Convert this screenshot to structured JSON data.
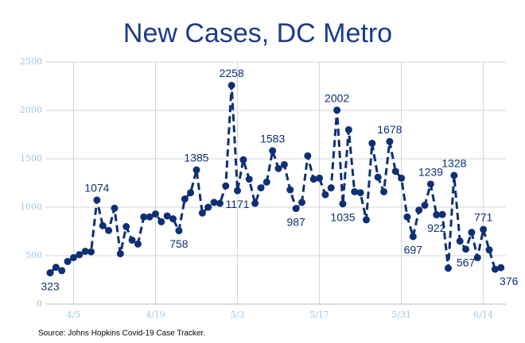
{
  "chart_data": {
    "type": "line",
    "title": "New Cases, DC Metro",
    "source": "Source: Johns Hopkins Covid-19 Case Tracker.",
    "categories": [
      "4/1",
      "4/2",
      "4/3",
      "4/4",
      "4/5",
      "4/6",
      "4/7",
      "4/8",
      "4/9",
      "4/10",
      "4/11",
      "4/12",
      "4/13",
      "4/14",
      "4/15",
      "4/16",
      "4/17",
      "4/18",
      "4/19",
      "4/20",
      "4/21",
      "4/22",
      "4/23",
      "4/24",
      "4/25",
      "4/26",
      "4/27",
      "4/28",
      "4/29",
      "4/30",
      "5/1",
      "5/2",
      "5/3",
      "5/4",
      "5/5",
      "5/6",
      "5/7",
      "5/8",
      "5/9",
      "5/10",
      "5/11",
      "5/12",
      "5/13",
      "5/14",
      "5/15",
      "5/16",
      "5/17",
      "5/18",
      "5/19",
      "5/20",
      "5/21",
      "5/22",
      "5/23",
      "5/24",
      "5/25",
      "5/26",
      "5/27",
      "5/28",
      "5/29",
      "5/30",
      "5/31",
      "6/1",
      "6/2",
      "6/3",
      "6/4",
      "6/5",
      "6/6",
      "6/7",
      "6/8",
      "6/9",
      "6/10",
      "6/11",
      "6/12",
      "6/13",
      "6/14",
      "6/15",
      "6/16",
      "6/17"
    ],
    "series": [
      {
        "name": "New Cases",
        "color": "#0e2f74",
        "values": [
          323,
          380,
          345,
          440,
          480,
          510,
          545,
          540,
          1074,
          810,
          760,
          990,
          520,
          800,
          660,
          620,
          900,
          900,
          930,
          850,
          910,
          880,
          758,
          1085,
          1150,
          1385,
          940,
          1000,
          1050,
          1040,
          1220,
          2258,
          1171,
          1490,
          1290,
          1040,
          1200,
          1260,
          1583,
          1400,
          1440,
          1180,
          987,
          1050,
          1530,
          1290,
          1300,
          1130,
          1200,
          2002,
          1035,
          1800,
          1160,
          1150,
          870,
          1660,
          1310,
          1160,
          1678,
          1370,
          1300,
          900,
          697,
          970,
          1020,
          1239,
          922,
          925,
          370,
          1328,
          650,
          567,
          740,
          480,
          771,
          560,
          360,
          376
        ],
        "value_labels": [
          "323",
          null,
          null,
          null,
          null,
          null,
          null,
          null,
          "1074",
          null,
          null,
          null,
          null,
          null,
          null,
          null,
          null,
          null,
          null,
          null,
          null,
          null,
          "758",
          null,
          null,
          "1385",
          null,
          null,
          null,
          null,
          null,
          "2258",
          "1171",
          null,
          null,
          null,
          null,
          null,
          "1583",
          null,
          null,
          null,
          "987",
          null,
          null,
          null,
          null,
          null,
          null,
          "2002",
          "1035",
          null,
          null,
          null,
          null,
          null,
          null,
          null,
          "1678",
          null,
          null,
          null,
          "697",
          null,
          null,
          "1239",
          "922",
          null,
          null,
          "1328",
          null,
          "567",
          null,
          null,
          "771",
          null,
          null,
          "376"
        ]
      }
    ],
    "xticks": [
      "4/5",
      "4/19",
      "5/3",
      "5/17",
      "5/31",
      "6/14"
    ],
    "ylim": [
      0,
      2500
    ],
    "yticks": [
      0,
      500,
      1000,
      1500,
      2000,
      2500
    ],
    "grid": true
  }
}
